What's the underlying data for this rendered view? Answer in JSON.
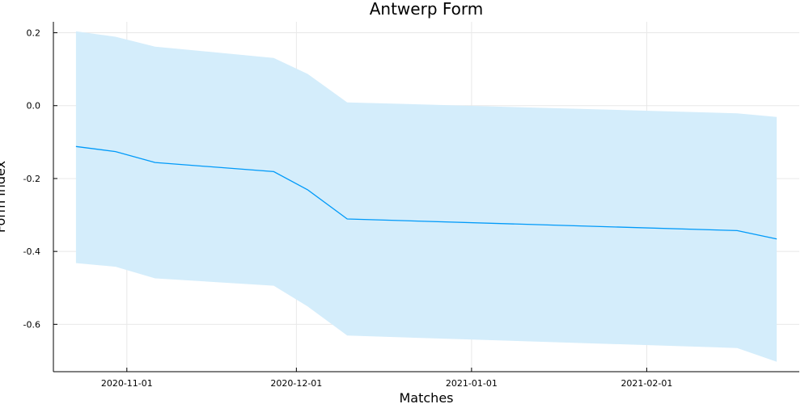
{
  "chart_data": {
    "type": "line",
    "title": "Antwerp Form",
    "xlabel": "Matches",
    "ylabel": "Form index",
    "x_axis_type": "date",
    "xlim": [
      "2020-10-19",
      "2021-02-28"
    ],
    "ylim": [
      -0.73,
      0.23
    ],
    "x_ticks": [
      "2020-11-01",
      "2020-12-01",
      "2021-01-01",
      "2021-02-01"
    ],
    "y_ticks": [
      0.2,
      0.0,
      -0.2,
      -0.4,
      -0.6
    ],
    "y_tick_labels": [
      "0.2",
      "0.0",
      "-0.2",
      "-0.4",
      "-0.6"
    ],
    "grid": true,
    "legend": false,
    "series": [
      {
        "x": [
          "2020-10-23",
          "2020-10-30",
          "2020-11-06",
          "2020-11-27",
          "2020-12-03",
          "2020-12-10",
          "2021-02-17",
          "2021-02-24"
        ],
        "y": [
          -0.112,
          -0.126,
          -0.156,
          -0.181,
          -0.231,
          -0.311,
          -0.343,
          -0.366
        ],
        "lower": [
          -0.432,
          -0.442,
          -0.474,
          -0.494,
          -0.551,
          -0.631,
          -0.665,
          -0.703
        ],
        "upper": [
          0.204,
          0.189,
          0.162,
          0.131,
          0.087,
          0.009,
          -0.021,
          -0.031
        ],
        "color": "#009af9",
        "band_color": "#d4edfb"
      }
    ],
    "colors": {
      "axis": "#000000",
      "grid": "#e8e8e8"
    }
  }
}
